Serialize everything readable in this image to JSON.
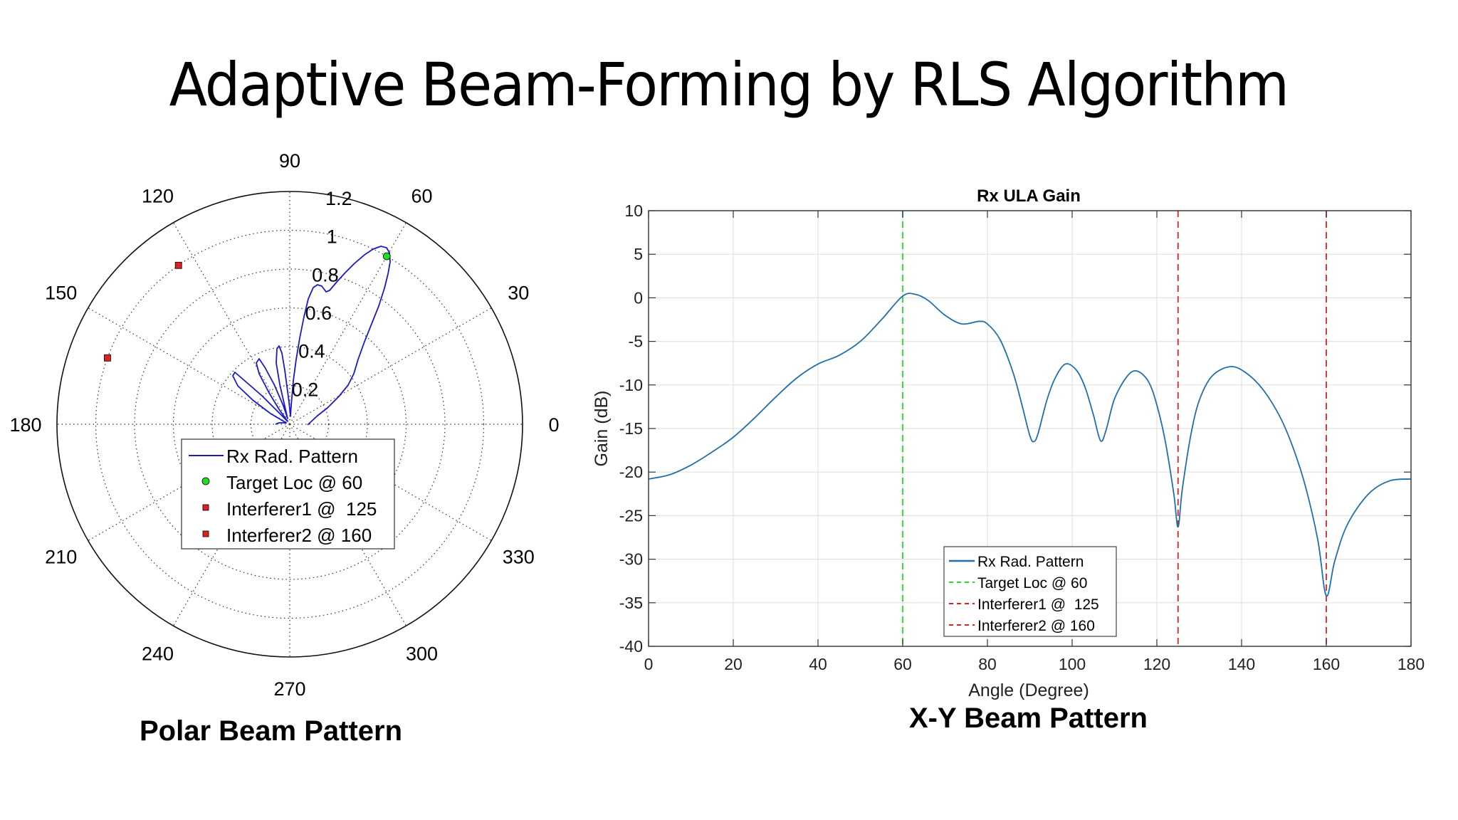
{
  "slide": {
    "title": "Adaptive Beam-Forming by RLS Algorithm",
    "polar_caption": "Polar Beam Pattern",
    "xy_caption": "X-Y Beam Pattern"
  },
  "colors": {
    "polar_curve": "#1a1acc",
    "xy_curve": "#1f6fad",
    "target": "#22dd22",
    "interferer": "#e02020"
  },
  "chart_data": [
    {
      "type": "polar",
      "title": "Polar Beam Pattern",
      "angle_ticks": [
        "0",
        "30",
        "60",
        "90",
        "120",
        "150",
        "180",
        "210",
        "240",
        "270",
        "300",
        "330"
      ],
      "radial_ticks": [
        "0.2",
        "0.4",
        "0.6",
        "0.8",
        "1",
        "1.2"
      ],
      "rlim": [
        0,
        1.2
      ],
      "grid": true,
      "legend": {
        "position": "center-below-origin",
        "entries": [
          "Rx Rad. Pattern",
          "Target Loc @ 60",
          "Interferer1 @  125",
          "Interferer2 @ 160"
        ]
      },
      "markers": [
        {
          "name": "Target Loc @ 60",
          "angle": 60,
          "r": 1.0,
          "shape": "circle",
          "color": "#22dd22"
        },
        {
          "name": "Interferer1 @  125",
          "angle": 125,
          "r": 1.0,
          "shape": "square",
          "color": "#e02020"
        },
        {
          "name": "Interferer2 @ 160",
          "angle": 160,
          "r": 1.0,
          "shape": "square",
          "color": "#e02020"
        }
      ],
      "series": [
        {
          "name": "Rx Rad. Pattern",
          "lobes": [
            {
              "peak_angle": 62,
              "peak_r": 1.02
            },
            {
              "peak_angle": 80,
              "peak_r": 0.66
            },
            {
              "peak_angle": 97,
              "peak_r": 0.36
            },
            {
              "peak_angle": 115,
              "peak_r": 0.35
            },
            {
              "peak_angle": 137,
              "peak_r": 0.35
            }
          ]
        }
      ]
    },
    {
      "type": "line",
      "title": "Rx ULA Gain",
      "xlabel": "Angle (Degree)",
      "ylabel": "Gain (dB)",
      "xlim": [
        0,
        180
      ],
      "ylim": [
        -40,
        10
      ],
      "xticks": [
        "0",
        "20",
        "40",
        "60",
        "80",
        "100",
        "120",
        "140",
        "160",
        "180"
      ],
      "yticks": [
        "10",
        "5",
        "0",
        "-5",
        "-10",
        "-15",
        "-20",
        "-25",
        "-30",
        "-35",
        "-40"
      ],
      "grid": true,
      "legend": {
        "position": "lower-center",
        "entries": [
          "Rx Rad. Pattern",
          "Target Loc @ 60",
          "Interferer1 @  125",
          "Interferer2 @ 160"
        ]
      },
      "vlines": [
        {
          "name": "Target Loc @ 60",
          "x": 60,
          "style": "dashed",
          "color": "#22dd22"
        },
        {
          "name": "Interferer1 @  125",
          "x": 125,
          "style": "dashed",
          "color": "#e02020"
        },
        {
          "name": "Interferer2 @ 160",
          "x": 160,
          "style": "dashed",
          "color": "#e02020"
        }
      ],
      "series": [
        {
          "name": "Rx Rad. Pattern",
          "x": [
            0,
            5,
            10,
            15,
            20,
            25,
            30,
            35,
            40,
            45,
            50,
            55,
            60,
            63,
            66,
            70,
            74,
            78,
            80,
            83,
            86,
            88,
            90,
            91,
            92,
            94,
            96,
            98.4,
            101,
            103,
            105,
            106.7,
            108,
            110,
            113,
            115.3,
            118,
            120,
            122,
            124,
            125,
            126,
            128,
            130,
            133,
            137.3,
            141,
            145,
            149,
            152,
            155,
            158,
            160,
            162,
            165,
            170,
            175,
            180
          ],
          "y": [
            -20.8,
            -20.3,
            -19.2,
            -17.7,
            -16.0,
            -13.8,
            -11.4,
            -9.2,
            -7.6,
            -6.6,
            -5.0,
            -2.5,
            0.2,
            0.4,
            -0.3,
            -2.0,
            -3.0,
            -2.7,
            -3.0,
            -4.8,
            -8.5,
            -12.0,
            -15.8,
            -16.5,
            -15.5,
            -11.8,
            -9.2,
            -7.6,
            -8.3,
            -10.2,
            -13.4,
            -16.4,
            -15.2,
            -11.6,
            -9.0,
            -8.4,
            -9.6,
            -12.3,
            -16.5,
            -22.5,
            -26.3,
            -22.0,
            -15.8,
            -11.8,
            -9.0,
            -7.9,
            -8.6,
            -10.5,
            -13.6,
            -17.0,
            -21.5,
            -27.8,
            -34.2,
            -30.2,
            -26.0,
            -22.5,
            -21.0,
            -20.8
          ]
        }
      ]
    }
  ]
}
